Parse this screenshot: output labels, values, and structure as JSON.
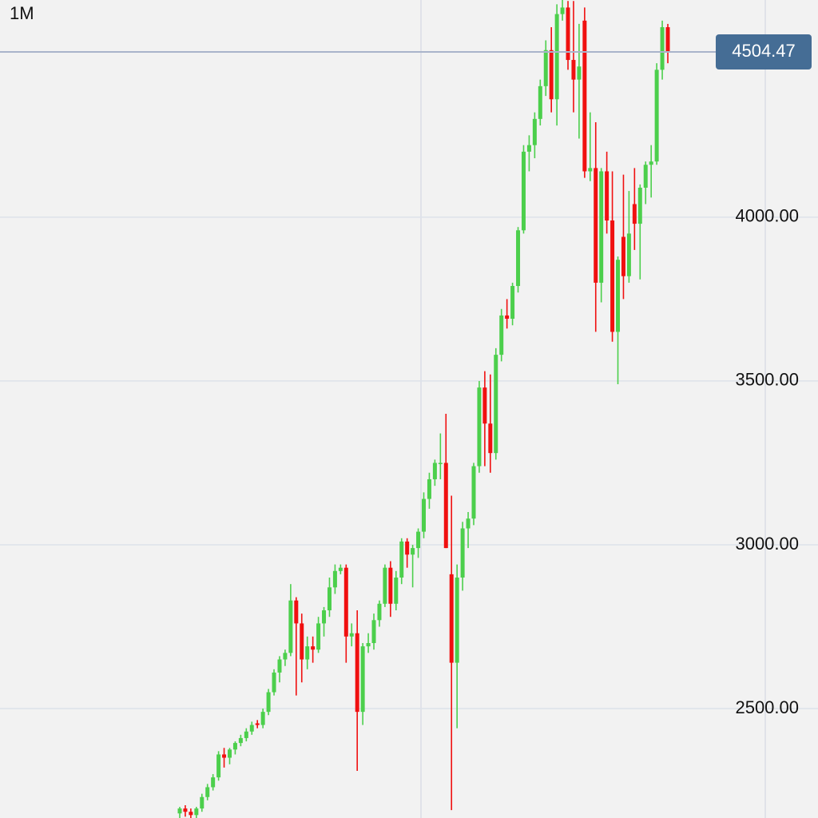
{
  "chart_data": {
    "type": "candlestick",
    "timeframe": "1M",
    "up_color": "#4ccf4c",
    "down_color": "#f01010",
    "grid": true,
    "ylim": [
      2166,
      4663
    ],
    "yticks": [
      {
        "value": 2500,
        "label": "2500.00"
      },
      {
        "value": 3000,
        "label": "3000.00"
      },
      {
        "value": 3500,
        "label": "3500.00"
      },
      {
        "value": 4000,
        "label": "4000.00"
      }
    ],
    "open": [
      2180,
      2195,
      2185,
      2175,
      2195,
      2230,
      2260,
      2290,
      2360,
      2350,
      2375,
      2395,
      2410,
      2430,
      2455,
      2450,
      2490,
      2550,
      2610,
      2650,
      2670,
      2830,
      2760,
      2650,
      2690,
      2680,
      2760,
      2800,
      2870,
      2920,
      2930,
      2720,
      2730,
      2490,
      2690,
      2700,
      2770,
      2820,
      2930,
      2820,
      2900,
      3010,
      2970,
      2990,
      3040,
      3140,
      3200,
      3250,
      3250,
      2910,
      2640,
      2900,
      3050,
      3080,
      3240,
      3480,
      3370,
      3280,
      3580,
      3700,
      3690,
      3790,
      3960,
      4200,
      4220,
      4300,
      4400,
      4510,
      4360,
      4620,
      4640,
      4480,
      4420,
      4600,
      4140,
      4150,
      3800,
      4140,
      3990,
      3650,
      3940,
      3820,
      4040,
      3980,
      4090,
      4160,
      4170,
      4450,
      4580
    ],
    "high": [
      2200,
      2205,
      2195,
      2200,
      2240,
      2270,
      2300,
      2370,
      2380,
      2380,
      2400,
      2420,
      2440,
      2460,
      2465,
      2500,
      2560,
      2620,
      2660,
      2680,
      2880,
      2840,
      2790,
      2720,
      2720,
      2780,
      2810,
      2900,
      2940,
      2940,
      2940,
      2760,
      2800,
      2700,
      2730,
      2790,
      2830,
      2940,
      2950,
      2920,
      3020,
      3020,
      3000,
      3050,
      3160,
      3220,
      3260,
      3340,
      3400,
      3150,
      2940,
      3070,
      3100,
      3250,
      3500,
      3530,
      3520,
      3600,
      3720,
      3750,
      3800,
      3970,
      4220,
      4250,
      4320,
      4420,
      4540,
      4580,
      4650,
      4663,
      4660,
      4660,
      4590,
      4640,
      4320,
      4290,
      4150,
      4200,
      4140,
      3880,
      4130,
      4080,
      4150,
      4100,
      4170,
      4220,
      4470,
      4600,
      4590
    ],
    "low": [
      2160,
      2170,
      2160,
      2160,
      2185,
      2220,
      2250,
      2280,
      2320,
      2330,
      2360,
      2385,
      2400,
      2420,
      2440,
      2440,
      2480,
      2540,
      2580,
      2630,
      2660,
      2540,
      2580,
      2620,
      2640,
      2670,
      2720,
      2780,
      2850,
      2910,
      2640,
      2690,
      2310,
      2450,
      2670,
      2680,
      2750,
      2810,
      2780,
      2800,
      2880,
      2930,
      2870,
      2960,
      3020,
      3110,
      3180,
      3200,
      2990,
      2190,
      2440,
      2860,
      2990,
      3060,
      3220,
      3240,
      3220,
      3260,
      3560,
      3660,
      3670,
      3770,
      3950,
      4140,
      4180,
      4280,
      4370,
      4320,
      4280,
      4600,
      4450,
      4320,
      4240,
      4120,
      4110,
      3650,
      3740,
      3950,
      3620,
      3490,
      3750,
      3800,
      3900,
      3810,
      4040,
      4060,
      4160,
      4420,
      4470
    ],
    "close": [
      2195,
      2185,
      2175,
      2195,
      2230,
      2260,
      2290,
      2360,
      2350,
      2375,
      2395,
      2410,
      2430,
      2450,
      2450,
      2490,
      2550,
      2610,
      2650,
      2670,
      2830,
      2760,
      2650,
      2690,
      2680,
      2760,
      2800,
      2870,
      2920,
      2930,
      2720,
      2730,
      2490,
      2690,
      2700,
      2770,
      2820,
      2930,
      2820,
      2900,
      3010,
      2970,
      2990,
      3040,
      3140,
      3200,
      3250,
      3250,
      2990,
      2640,
      2900,
      3050,
      3080,
      3240,
      3480,
      3370,
      3280,
      3580,
      3700,
      3690,
      3790,
      3960,
      4200,
      4220,
      4300,
      4400,
      4510,
      4360,
      4620,
      4640,
      4480,
      4420,
      4460,
      4140,
      4150,
      3800,
      4140,
      3990,
      3650,
      3870,
      3820,
      3950,
      3980,
      4090,
      4160,
      4170,
      4450,
      4580,
      4504.47
    ]
  }
}
